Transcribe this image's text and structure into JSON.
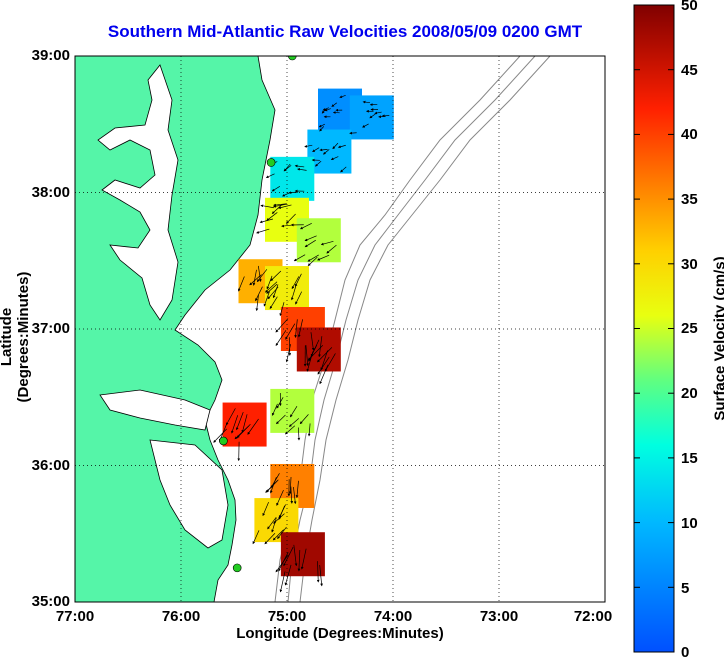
{
  "title": "Southern Mid-Atlantic Raw Velocities 2008/05/09 0200 GMT",
  "axes": {
    "xlabel": "Longitude (Degrees:Minutes)",
    "ylabel": "Latitude (Degrees:Minutes)",
    "x_ticks": [
      "77:00",
      "76:00",
      "75:00",
      "74:00",
      "73:00",
      "72:00"
    ],
    "y_ticks": [
      "39:00",
      "38:00",
      "37:00",
      "36:00",
      "35:00"
    ]
  },
  "colorbar": {
    "label": "Surface Velocity (cm/s)",
    "ticks": [
      "50",
      "45",
      "40",
      "35",
      "30",
      "25",
      "20",
      "15",
      "10",
      "5",
      "0"
    ],
    "range": [
      0,
      50
    ]
  },
  "colors": {
    "land": "#55f5a8",
    "title": "#0000ee",
    "bathymetry": "#888888",
    "station": "#22cc22"
  },
  "stations": [
    {
      "lon": -74.95,
      "lat": 39.0
    },
    {
      "lon": -75.15,
      "lat": 38.22
    },
    {
      "lon": -75.6,
      "lat": 36.18
    },
    {
      "lon": -75.47,
      "lat": 35.25
    }
  ],
  "velocity_patches": [
    {
      "lon": -74.5,
      "lat": 38.6,
      "speed": 6
    },
    {
      "lon": -74.2,
      "lat": 38.55,
      "speed": 8
    },
    {
      "lon": -74.6,
      "lat": 38.3,
      "speed": 10
    },
    {
      "lon": -74.95,
      "lat": 38.1,
      "speed": 14
    },
    {
      "lon": -75.0,
      "lat": 37.8,
      "speed": 26
    },
    {
      "lon": -74.7,
      "lat": 37.65,
      "speed": 24
    },
    {
      "lon": -75.25,
      "lat": 37.35,
      "speed": 33
    },
    {
      "lon": -75.0,
      "lat": 37.3,
      "speed": 28
    },
    {
      "lon": -74.85,
      "lat": 37.0,
      "speed": 40
    },
    {
      "lon": -74.7,
      "lat": 36.85,
      "speed": 47
    },
    {
      "lon": -75.4,
      "lat": 36.3,
      "speed": 42
    },
    {
      "lon": -74.95,
      "lat": 36.4,
      "speed": 24
    },
    {
      "lon": -74.95,
      "lat": 35.85,
      "speed": 36
    },
    {
      "lon": -75.1,
      "lat": 35.6,
      "speed": 30
    },
    {
      "lon": -74.85,
      "lat": 35.35,
      "speed": 48
    }
  ]
}
